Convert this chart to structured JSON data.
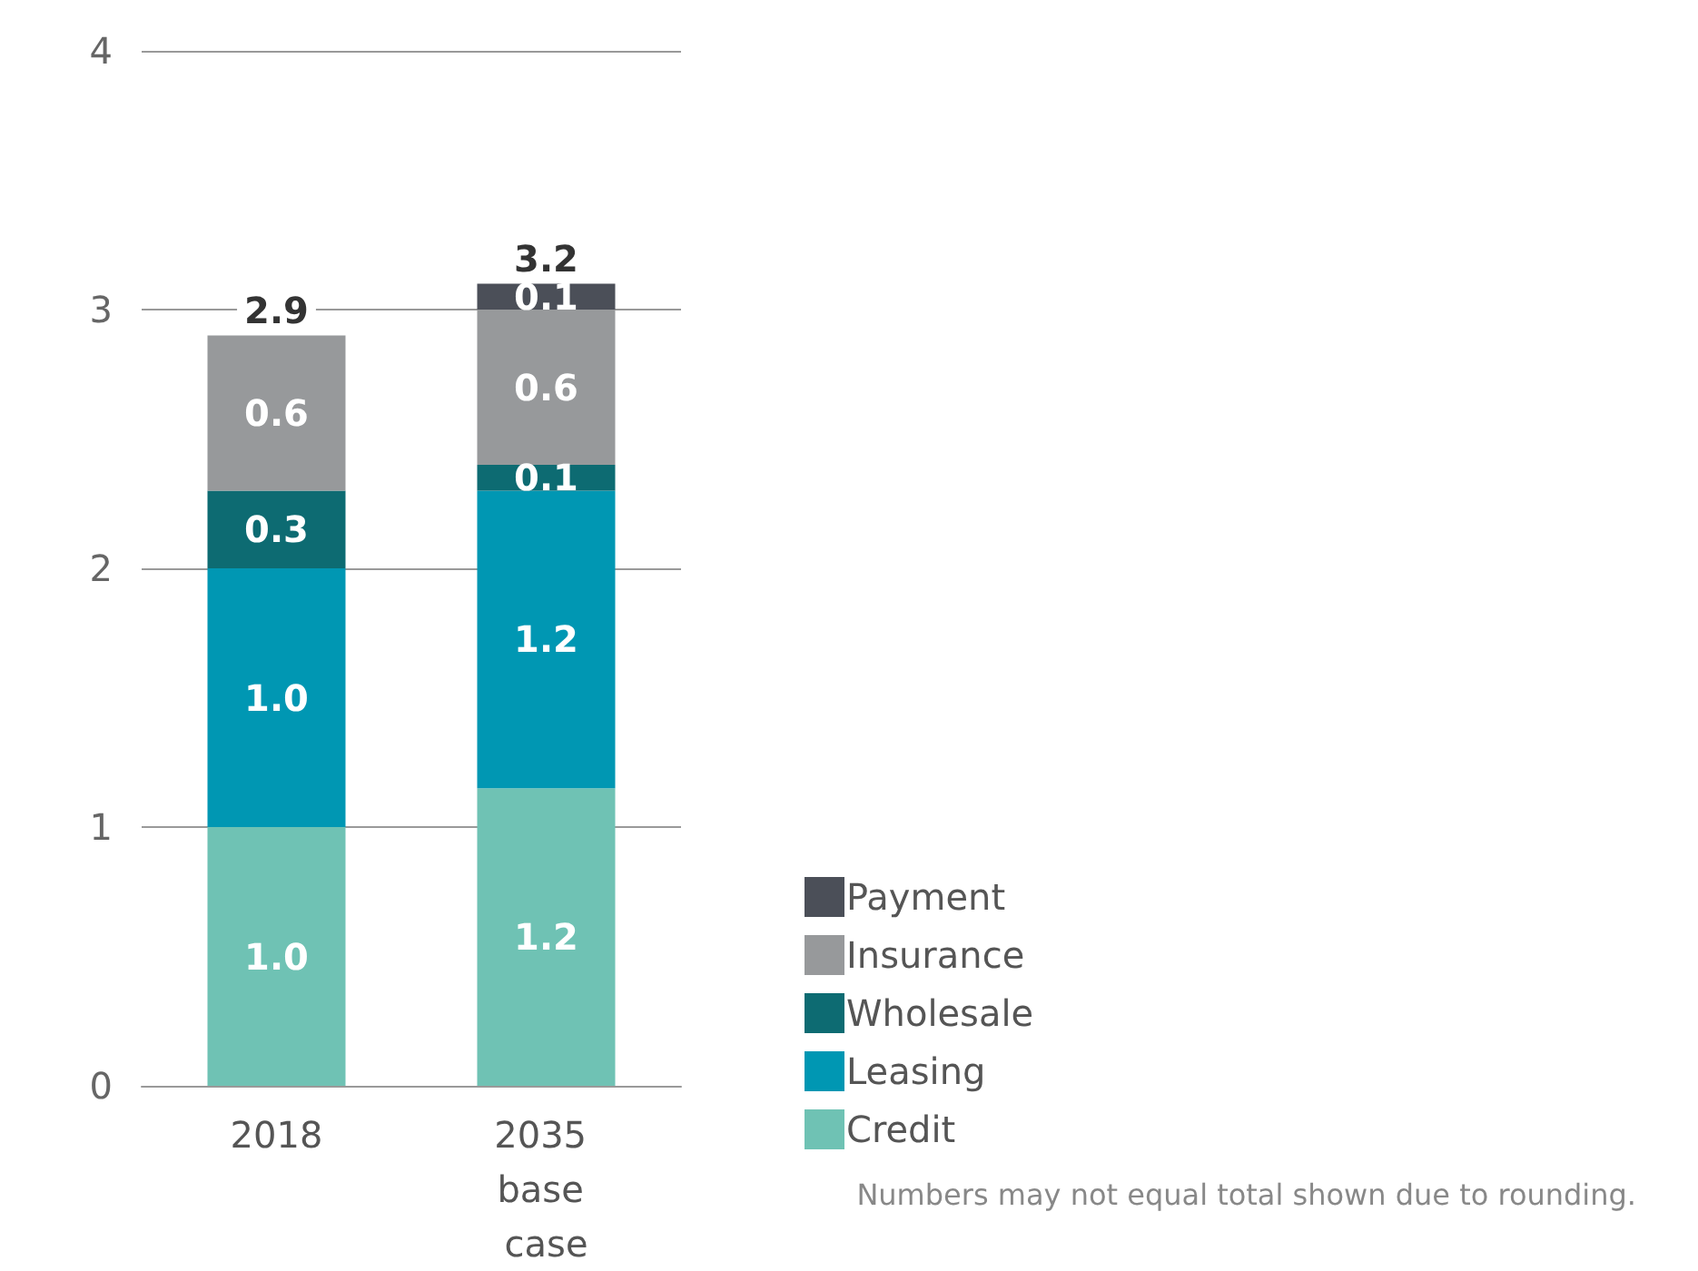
{
  "chart_data": {
    "type": "bar",
    "stacked": true,
    "categories": [
      "2018",
      "2035 base case"
    ],
    "series": [
      {
        "name": "Credit",
        "color": "#6fc2b4",
        "values": [
          1.0,
          1.15
        ],
        "value_labels": [
          "1.0",
          "1.2"
        ]
      },
      {
        "name": "Leasing",
        "color": "#0097b3",
        "values": [
          1.0,
          1.15
        ],
        "value_labels": [
          "1.0",
          "1.2"
        ]
      },
      {
        "name": "Wholesale",
        "color": "#0d6b72",
        "values": [
          0.3,
          0.1
        ],
        "value_labels": [
          "0.3",
          "0.1"
        ]
      },
      {
        "name": "Insurance",
        "color": "#97999b",
        "values": [
          0.6,
          0.6
        ],
        "value_labels": [
          "0.6",
          "0.6"
        ]
      },
      {
        "name": "Payment",
        "color": "#4b4f58",
        "values": [
          null,
          0.1
        ],
        "value_labels": [
          null,
          "0.1"
        ]
      }
    ],
    "totals": [
      "2.9",
      "3.2"
    ],
    "ylim": [
      0,
      4
    ],
    "yticks": [
      0,
      1,
      2,
      3,
      4
    ],
    "grid": "y",
    "legend": "bottom right",
    "annotations": [
      "Numbers may not equal total shown due to rounding."
    ]
  }
}
